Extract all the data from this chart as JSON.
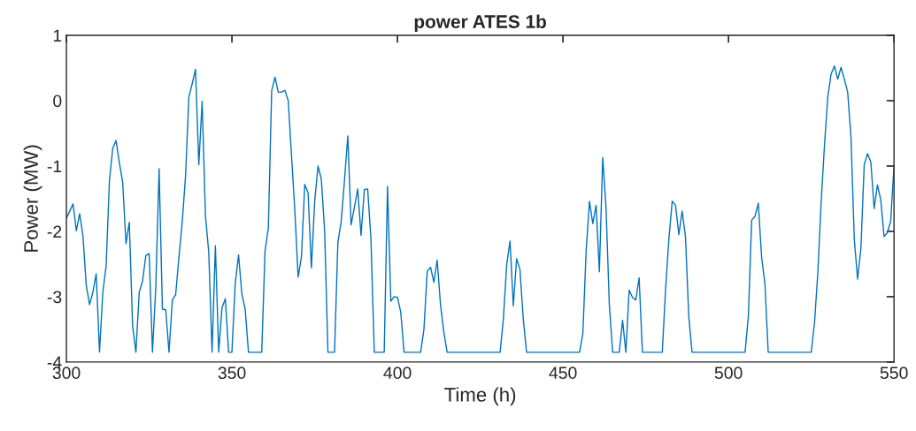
{
  "chart_data": {
    "type": "line",
    "title": "power ATES 1b",
    "xlabel": "Time (h)",
    "ylabel": "Power (MW)",
    "xlim": [
      300,
      550
    ],
    "xticks": [
      300,
      350,
      400,
      450,
      500,
      550
    ],
    "ylim": [
      -4,
      1
    ],
    "yticks": [
      -4,
      -3,
      -2,
      -1,
      0,
      1
    ],
    "grid": false,
    "marker": "none",
    "line_style": "solid",
    "series": [
      {
        "color": "#0072bd",
        "x": [
          300,
          302,
          303,
          304,
          305,
          306,
          307,
          308,
          309,
          310,
          311,
          312,
          313,
          314,
          315,
          316,
          317,
          318,
          319,
          320,
          321,
          322,
          323,
          324,
          325,
          326,
          327,
          328,
          329,
          330,
          331,
          332,
          333,
          334,
          335,
          336,
          337,
          338,
          339,
          340,
          341,
          342,
          343,
          344,
          345,
          346,
          347,
          348,
          349,
          350,
          351,
          352,
          353,
          354,
          355,
          359,
          360,
          361,
          362,
          363,
          364,
          365,
          366,
          367,
          369,
          370,
          371,
          372,
          373,
          374,
          375,
          376,
          377,
          378,
          379,
          381,
          382,
          383,
          384,
          385,
          386,
          387,
          388,
          389,
          390,
          391,
          392,
          393,
          396,
          397,
          398,
          399,
          400,
          401,
          402,
          407,
          408,
          409,
          410,
          411,
          412,
          413,
          414,
          415,
          431,
          432,
          433,
          434,
          435,
          436,
          437,
          438,
          439,
          455,
          456,
          457,
          458,
          459,
          460,
          461,
          462,
          463,
          464,
          465,
          467,
          468,
          469,
          470,
          471,
          472,
          473,
          474,
          480,
          481,
          482,
          483,
          484,
          485,
          486,
          487,
          488,
          489,
          505,
          506,
          507,
          508,
          509,
          510,
          511,
          512,
          525,
          526,
          527,
          528,
          529,
          530,
          531,
          532,
          533,
          534,
          535,
          536,
          537,
          538,
          539,
          540,
          541,
          542,
          543,
          544,
          545,
          546,
          547,
          548,
          549,
          550
        ],
        "values": [
          -1.8,
          -1.58,
          -1.99,
          -1.73,
          -2.07,
          -2.83,
          -3.12,
          -2.93,
          -2.65,
          -3.85,
          -2.93,
          -2.53,
          -1.22,
          -0.73,
          -0.61,
          -0.95,
          -1.25,
          -2.19,
          -1.86,
          -3.45,
          -3.85,
          -2.93,
          -2.76,
          -2.37,
          -2.34,
          -3.85,
          -2.85,
          -1.04,
          -3.19,
          -3.2,
          -3.85,
          -3.05,
          -2.97,
          -2.39,
          -1.85,
          -1.14,
          0.06,
          0.26,
          0.48,
          -0.98,
          -0.01,
          -1.76,
          -2.32,
          -3.85,
          -2.22,
          -3.85,
          -3.17,
          -3.03,
          -3.85,
          -3.85,
          -2.8,
          -2.36,
          -2.96,
          -3.19,
          -3.85,
          -3.85,
          -2.3,
          -1.95,
          0.15,
          0.36,
          0.13,
          0.13,
          0.16,
          0.0,
          -1.68,
          -2.7,
          -2.39,
          -1.28,
          -1.41,
          -2.56,
          -1.54,
          -1.0,
          -1.2,
          -1.99,
          -3.85,
          -3.85,
          -2.17,
          -1.85,
          -1.22,
          -0.54,
          -1.9,
          -1.63,
          -1.35,
          -2.06,
          -1.36,
          -1.35,
          -2.12,
          -3.85,
          -3.85,
          -1.31,
          -3.07,
          -3.0,
          -3.01,
          -3.24,
          -3.85,
          -3.85,
          -3.5,
          -2.61,
          -2.55,
          -2.78,
          -2.44,
          -3.12,
          -3.54,
          -3.85,
          -3.85,
          -3.34,
          -2.51,
          -2.15,
          -3.14,
          -2.42,
          -2.58,
          -3.34,
          -3.85,
          -3.85,
          -3.57,
          -2.3,
          -1.54,
          -1.88,
          -1.6,
          -2.62,
          -0.87,
          -1.63,
          -3.12,
          -3.85,
          -3.85,
          -3.36,
          -3.85,
          -2.9,
          -3.01,
          -3.05,
          -2.71,
          -3.85,
          -3.85,
          -2.88,
          -2.11,
          -1.54,
          -1.6,
          -2.05,
          -1.69,
          -2.08,
          -3.3,
          -3.85,
          -3.85,
          -3.3,
          -1.83,
          -1.77,
          -1.57,
          -2.39,
          -2.8,
          -3.85,
          -3.85,
          -3.39,
          -2.62,
          -1.54,
          -0.68,
          0.06,
          0.41,
          0.53,
          0.33,
          0.51,
          0.33,
          0.13,
          -0.55,
          -2.12,
          -2.73,
          -2.26,
          -0.98,
          -0.81,
          -0.94,
          -1.65,
          -1.29,
          -1.52,
          -2.08,
          -2.02,
          -1.84,
          -0.99
        ]
      }
    ]
  }
}
